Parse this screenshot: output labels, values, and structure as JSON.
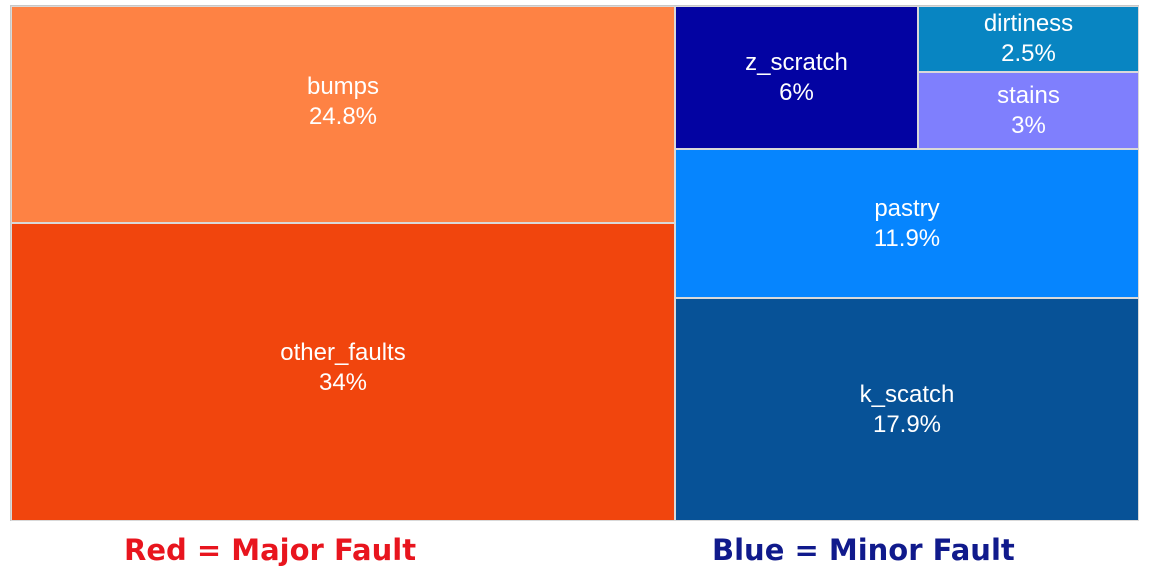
{
  "chart_data": {
    "type": "treemap",
    "groups": [
      {
        "name": "Red = Major Fault",
        "tiles": [
          {
            "label": "other_faults",
            "value_text": "34%",
            "value": 34.0,
            "color": "#f1450d"
          },
          {
            "label": "bumps",
            "value_text": "24.8%",
            "value": 24.8,
            "color": "#fe8244"
          }
        ]
      },
      {
        "name": "Blue = Minor Fault",
        "tiles": [
          {
            "label": "k_scatch",
            "value_text": "17.9%",
            "value": 17.9,
            "color": "#075297"
          },
          {
            "label": "pastry",
            "value_text": "11.9%",
            "value": 11.9,
            "color": "#0685fe"
          },
          {
            "label": "z_scratch",
            "value_text": "6%",
            "value": 6.0,
            "color": "#0303a2"
          },
          {
            "label": "stains",
            "value_text": "3%",
            "value": 3.0,
            "color": "#7f7ffd"
          },
          {
            "label": "dirtiness",
            "value_text": "2.5%",
            "value": 2.5,
            "color": "#0885c2"
          }
        ]
      }
    ]
  },
  "legend": {
    "red": {
      "text": "Red = Major Fault",
      "color": "#e8151e"
    },
    "blue": {
      "text": "Blue = Minor Fault",
      "color": "#101a8c"
    }
  }
}
